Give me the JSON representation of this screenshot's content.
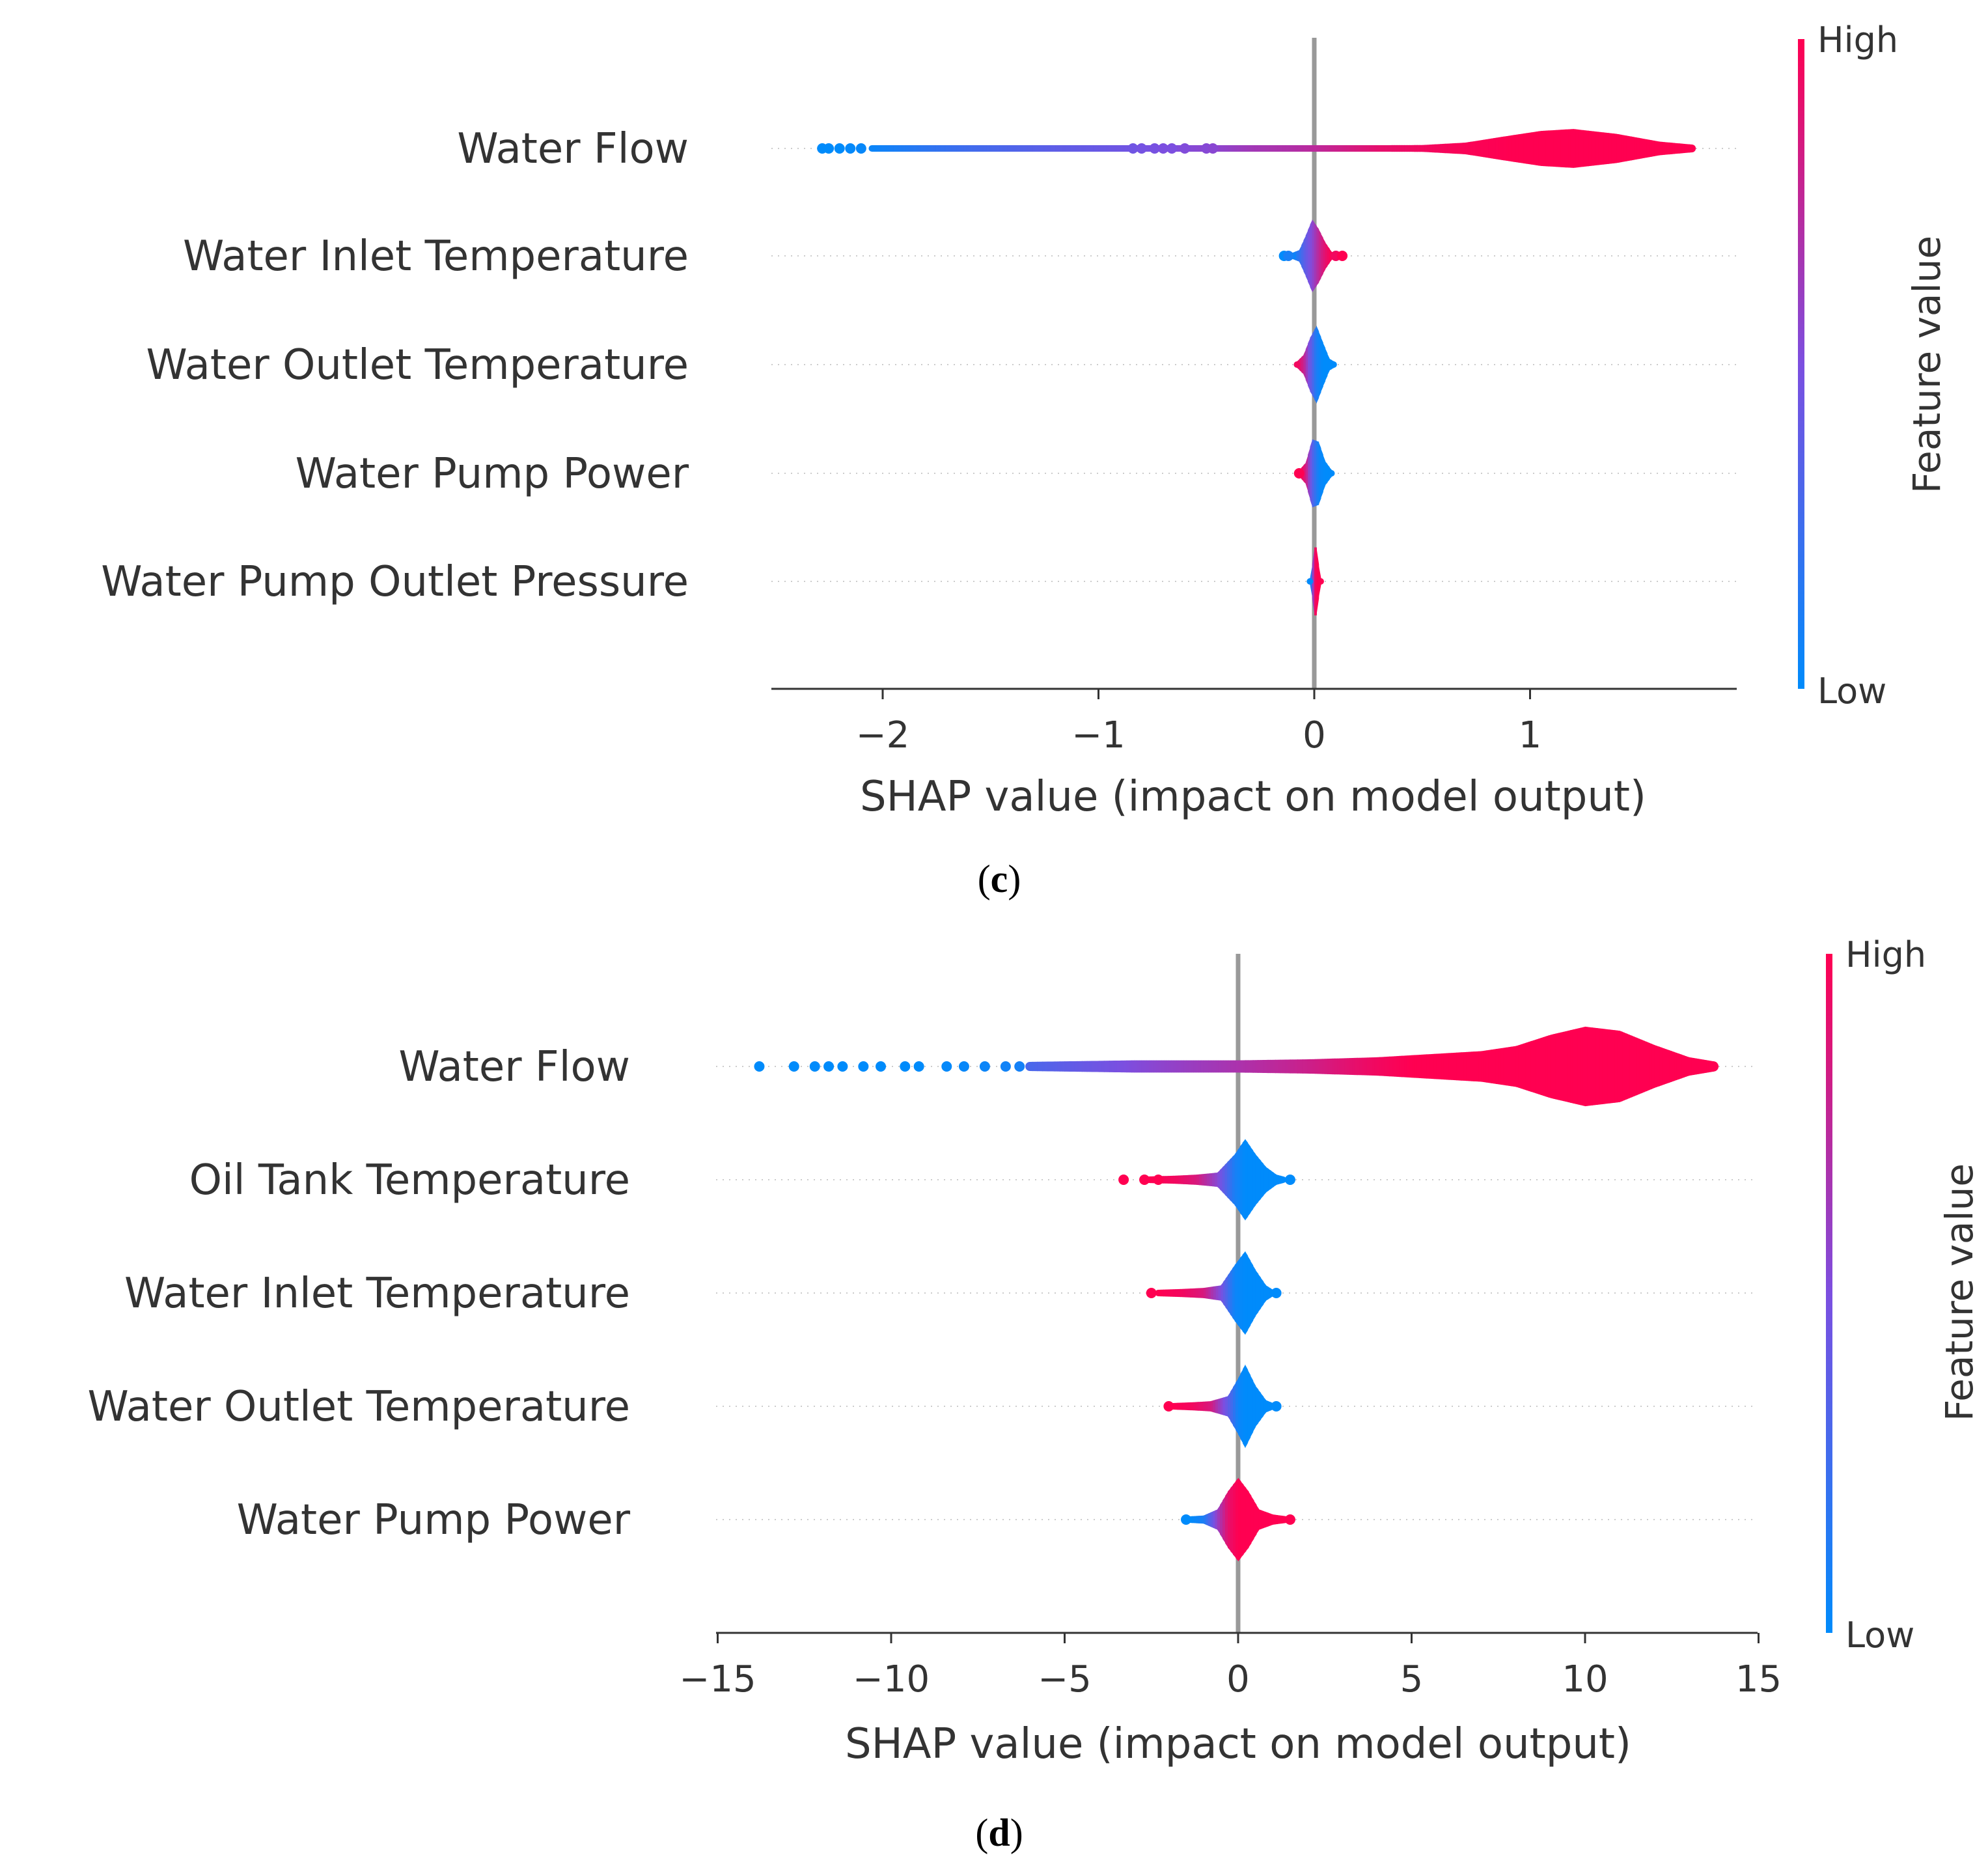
{
  "colors": {
    "low": "#008bfb",
    "mid": "#7c4fe0",
    "high": "#ff0051",
    "zero_line": "#999999",
    "grid": "#cccccc",
    "text": "#333333"
  },
  "chart_data": [
    {
      "type": "violin",
      "panel_label": "c",
      "xlabel": "SHAP value (impact on model output)",
      "xlim": [
        -2.5,
        2.0
      ],
      "xticks": [
        -2,
        -1,
        0,
        1
      ],
      "xtick_labels": [
        "−2",
        "−1",
        "0",
        "1"
      ],
      "colorbar": {
        "title": "Feature value",
        "high": "High",
        "low": "Low"
      },
      "features": [
        {
          "name": "Water Flow",
          "dots": [
            {
              "x": -2.28,
              "c": 0.0
            },
            {
              "x": -2.25,
              "c": 0.0
            },
            {
              "x": -2.2,
              "c": 0.0
            },
            {
              "x": -2.15,
              "c": 0.02
            },
            {
              "x": -2.1,
              "c": 0.03
            },
            {
              "x": -0.84,
              "c": 0.45
            },
            {
              "x": -0.8,
              "c": 0.47
            },
            {
              "x": -0.74,
              "c": 0.48
            },
            {
              "x": -0.7,
              "c": 0.5
            },
            {
              "x": -0.66,
              "c": 0.5
            },
            {
              "x": -0.6,
              "c": 0.52
            },
            {
              "x": -0.5,
              "c": 0.54
            },
            {
              "x": -0.47,
              "c": 0.55
            }
          ],
          "violin": {
            "x": [
              -2.05,
              -1.95,
              -1.8,
              -1.6,
              -1.4,
              -1.2,
              -1.0,
              -0.88,
              -0.42,
              -0.3,
              -0.1,
              0.0,
              0.15,
              0.3,
              0.5,
              0.7,
              0.9,
              1.05,
              1.2,
              1.4,
              1.6,
              1.75
            ],
            "w": [
              0.008,
              0.01,
              0.012,
              0.014,
              0.015,
              0.015,
              0.014,
              0.013,
              0.012,
              0.014,
              0.015,
              0.016,
              0.02,
              0.04,
              0.07,
              0.12,
              0.26,
              0.36,
              0.4,
              0.3,
              0.14,
              0.08
            ],
            "c": [
              0.05,
              0.1,
              0.18,
              0.26,
              0.32,
              0.38,
              0.42,
              0.45,
              0.58,
              0.64,
              0.7,
              0.74,
              0.82,
              0.9,
              0.95,
              0.98,
              1.0,
              1.0,
              1.0,
              1.0,
              1.0,
              1.0
            ]
          }
        },
        {
          "name": "Water Inlet Temperature",
          "dots": [
            {
              "x": -0.14,
              "c": 0.0
            },
            {
              "x": -0.12,
              "c": 0.1
            },
            {
              "x": 0.1,
              "c": 0.95
            },
            {
              "x": 0.13,
              "c": 1.0
            }
          ],
          "violin": {
            "x": [
              -0.1,
              -0.07,
              -0.04,
              -0.01,
              0.02,
              0.05,
              0.08,
              0.1
            ],
            "w": [
              0.03,
              0.12,
              0.42,
              0.75,
              0.55,
              0.28,
              0.08,
              0.03
            ],
            "c": [
              0.05,
              0.2,
              0.4,
              0.55,
              0.75,
              0.9,
              1.0,
              1.0
            ]
          }
        },
        {
          "name": "Water Outlet Temperature",
          "dots": [],
          "violin": {
            "x": [
              -0.08,
              -0.05,
              -0.02,
              0.01,
              0.04,
              0.07,
              0.09
            ],
            "w": [
              0.03,
              0.2,
              0.55,
              0.8,
              0.45,
              0.12,
              0.03
            ],
            "c": [
              0.95,
              0.8,
              0.45,
              0.1,
              0.0,
              0.0,
              0.0
            ]
          }
        },
        {
          "name": "Water Pump Power",
          "dots": [
            {
              "x": -0.07,
              "c": 1.0
            }
          ],
          "violin": {
            "x": [
              -0.07,
              -0.04,
              -0.01,
              0.02,
              0.05,
              0.08
            ],
            "w": [
              0.03,
              0.22,
              0.7,
              0.65,
              0.25,
              0.04
            ],
            "c": [
              1.0,
              0.85,
              0.35,
              0.05,
              0.0,
              0.0
            ]
          }
        },
        {
          "name": "Water Pump Outlet Pressure",
          "dots": [],
          "violin": {
            "x": [
              -0.02,
              -0.01,
              0.0,
              0.01,
              0.02,
              0.03
            ],
            "w": [
              0.03,
              0.35,
              0.7,
              0.7,
              0.35,
              0.03
            ],
            "c": [
              0.0,
              0.4,
              0.9,
              1.0,
              1.0,
              1.0
            ]
          }
        }
      ]
    },
    {
      "type": "violin",
      "panel_label": "d",
      "xlabel": "SHAP value (impact on model output)",
      "xlim": [
        -15,
        15
      ],
      "xticks": [
        -15,
        -10,
        -5,
        0,
        5,
        10,
        15
      ],
      "xtick_labels": [
        "−15",
        "−10",
        "−5",
        "0",
        "5",
        "10",
        "15"
      ],
      "colorbar": {
        "title": "Feature value",
        "high": "High",
        "low": "Low"
      },
      "features": [
        {
          "name": "Water Flow",
          "dots": [
            {
              "x": -13.8,
              "c": 0.0
            },
            {
              "x": -12.8,
              "c": 0.0
            },
            {
              "x": -12.2,
              "c": 0.0
            },
            {
              "x": -11.8,
              "c": 0.0
            },
            {
              "x": -11.4,
              "c": 0.0
            },
            {
              "x": -10.8,
              "c": 0.0
            },
            {
              "x": -10.3,
              "c": 0.0
            },
            {
              "x": -9.6,
              "c": 0.0
            },
            {
              "x": -9.2,
              "c": 0.0
            },
            {
              "x": -8.4,
              "c": 0.02
            },
            {
              "x": -7.9,
              "c": 0.03
            },
            {
              "x": -7.3,
              "c": 0.05
            },
            {
              "x": -6.7,
              "c": 0.07
            },
            {
              "x": -6.3,
              "c": 0.08
            }
          ],
          "violin": {
            "x": [
              -6.0,
              -5.0,
              -4.0,
              -3.0,
              -2.0,
              -1.0,
              0.0,
              1.0,
              2.0,
              3.0,
              4.0,
              5.0,
              6.0,
              7.0,
              8.0,
              9.0,
              10.0,
              11.0,
              12.0,
              13.0,
              13.7
            ],
            "w": [
              0.09,
              0.1,
              0.11,
              0.12,
              0.12,
              0.12,
              0.12,
              0.13,
              0.14,
              0.16,
              0.18,
              0.22,
              0.26,
              0.3,
              0.4,
              0.62,
              0.78,
              0.7,
              0.42,
              0.18,
              0.1
            ],
            "c": [
              0.3,
              0.38,
              0.45,
              0.52,
              0.58,
              0.63,
              0.68,
              0.74,
              0.8,
              0.88,
              0.95,
              1.0,
              1.0,
              1.0,
              1.0,
              1.0,
              1.0,
              1.0,
              1.0,
              1.0,
              1.0
            ]
          }
        },
        {
          "name": "Oil Tank Temperature",
          "dots": [
            {
              "x": -3.3,
              "c": 1.0
            },
            {
              "x": -2.7,
              "c": 1.0
            },
            {
              "x": -2.3,
              "c": 1.0
            },
            {
              "x": 1.5,
              "c": 0.0
            }
          ],
          "violin": {
            "x": [
              -2.6,
              -1.8,
              -1.2,
              -0.6,
              -0.1,
              0.2,
              0.5,
              0.8,
              1.1,
              1.3
            ],
            "w": [
              0.05,
              0.08,
              0.1,
              0.14,
              0.5,
              0.8,
              0.5,
              0.25,
              0.1,
              0.05
            ],
            "c": [
              1.0,
              0.95,
              0.85,
              0.55,
              0.1,
              0.0,
              0.0,
              0.0,
              0.0,
              0.0
            ]
          }
        },
        {
          "name": "Water Inlet Temperature",
          "dots": [
            {
              "x": -2.5,
              "c": 1.0
            },
            {
              "x": 1.1,
              "c": 0.0
            }
          ],
          "violin": {
            "x": [
              -2.3,
              -1.6,
              -1.0,
              -0.5,
              -0.1,
              0.2,
              0.5,
              0.8,
              1.0
            ],
            "w": [
              0.05,
              0.08,
              0.1,
              0.15,
              0.55,
              0.82,
              0.45,
              0.15,
              0.05
            ],
            "c": [
              1.0,
              0.95,
              0.85,
              0.5,
              0.05,
              0.0,
              0.0,
              0.0,
              0.0
            ]
          }
        },
        {
          "name": "Water Outlet Temperature",
          "dots": [
            {
              "x": -2.0,
              "c": 1.0
            },
            {
              "x": 1.1,
              "c": 0.0
            }
          ],
          "violin": {
            "x": [
              -1.9,
              -1.3,
              -0.8,
              -0.3,
              0.0,
              0.2,
              0.5,
              0.8,
              1.0
            ],
            "w": [
              0.05,
              0.08,
              0.1,
              0.2,
              0.55,
              0.82,
              0.4,
              0.12,
              0.05
            ],
            "c": [
              1.0,
              0.95,
              0.85,
              0.4,
              0.05,
              0.0,
              0.0,
              0.0,
              0.0
            ]
          }
        },
        {
          "name": "Water Pump Power",
          "dots": [
            {
              "x": -1.5,
              "c": 0.0
            },
            {
              "x": 1.5,
              "c": 1.0
            }
          ],
          "violin": {
            "x": [
              -1.4,
              -1.0,
              -0.6,
              -0.3,
              0.0,
              0.3,
              0.6,
              1.0,
              1.4
            ],
            "w": [
              0.05,
              0.08,
              0.2,
              0.55,
              0.82,
              0.55,
              0.2,
              0.1,
              0.05
            ],
            "c": [
              0.0,
              0.1,
              0.6,
              0.9,
              1.0,
              1.0,
              1.0,
              1.0,
              1.0
            ]
          }
        }
      ]
    }
  ]
}
